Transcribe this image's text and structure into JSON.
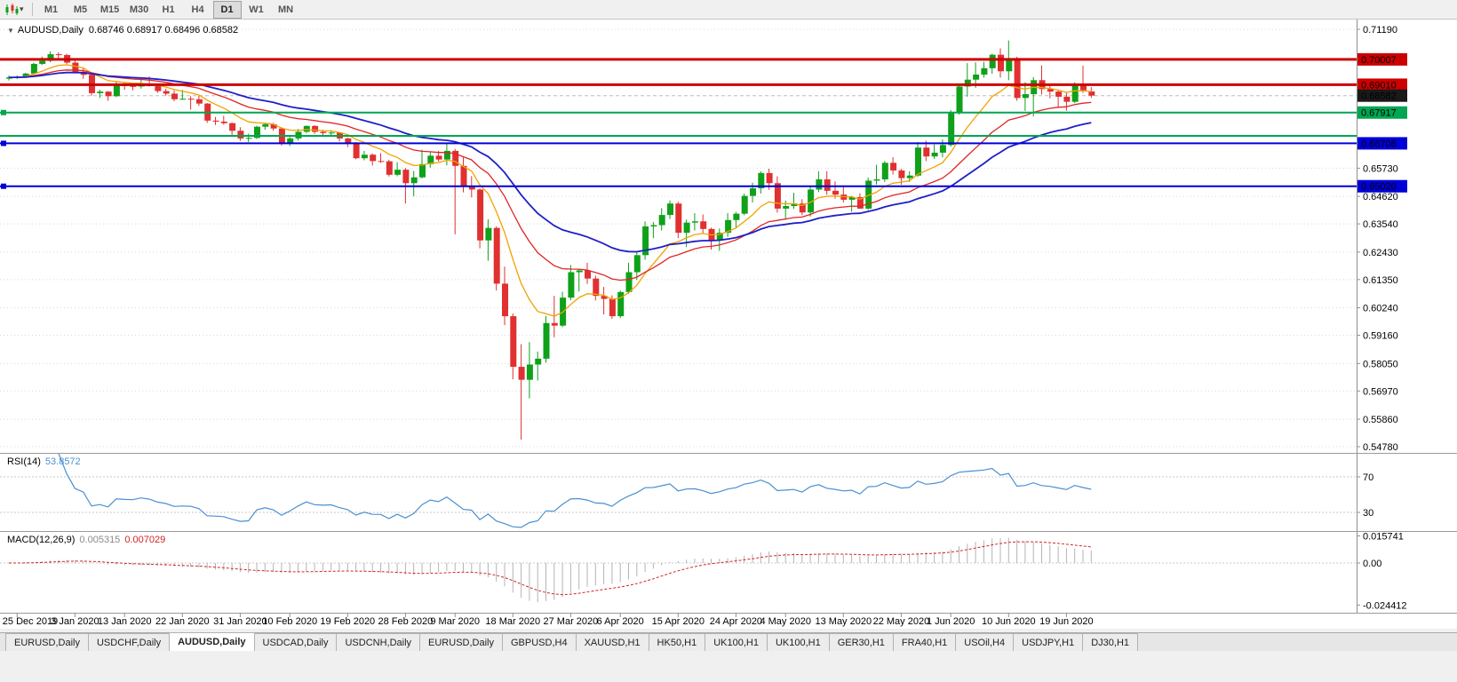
{
  "toolbar": {
    "timeframes": [
      "M1",
      "M5",
      "M15",
      "M30",
      "H1",
      "H4",
      "D1",
      "W1",
      "MN"
    ],
    "active_timeframe": "D1"
  },
  "chart": {
    "title": "AUDUSD,Daily",
    "ohlc": "0.68746 0.68917 0.68496 0.68582",
    "bid": "0.68582",
    "axis_labels": [
      "0.71190",
      "0.65730",
      "0.64620",
      "0.63540",
      "0.62430",
      "0.61350",
      "0.60240",
      "0.59160",
      "0.58050",
      "0.56970",
      "0.55860",
      "0.54780"
    ],
    "hlines": [
      {
        "price": 0.70007,
        "label": "0.70007",
        "color": "#cc0000",
        "width": 3,
        "handle": false
      },
      {
        "price": 0.6901,
        "label": "0.69010",
        "color": "#cc0000",
        "width": 3,
        "handle": false
      },
      {
        "price": 0.67917,
        "label": "0.67917",
        "color": "#00a651",
        "width": 2,
        "handle": true
      },
      {
        "price": 0.67,
        "label": "",
        "color": "#00a651",
        "width": 2,
        "handle": false
      },
      {
        "price": 0.66706,
        "label": "0.66706",
        "color": "#0000d8",
        "width": 2,
        "handle": true
      },
      {
        "price": 0.6502,
        "label": "0.65020",
        "color": "#0000d8",
        "width": 2,
        "handle": true
      }
    ],
    "colors": {
      "bull": "#0ea119",
      "bear": "#e03030",
      "grid": "#d8d8d8",
      "bid_tag": "#1a1a1a"
    }
  },
  "chart_data": {
    "type": "candlestick",
    "symbol": "AUDUSD",
    "period": "Daily",
    "x_labels": [
      {
        "i": 1,
        "label": "25 Dec 2019"
      },
      {
        "i": 8,
        "label": "3 Jan 2020"
      },
      {
        "i": 14,
        "label": "13 Jan 2020"
      },
      {
        "i": 21,
        "label": "22 Jan 2020"
      },
      {
        "i": 28,
        "label": "31 Jan 2020"
      },
      {
        "i": 34,
        "label": "10 Feb 2020"
      },
      {
        "i": 41,
        "label": "19 Feb 2020"
      },
      {
        "i": 48,
        "label": "28 Feb 2020"
      },
      {
        "i": 54,
        "label": "9 Mar 2020"
      },
      {
        "i": 61,
        "label": "18 Mar 2020"
      },
      {
        "i": 68,
        "label": "27 Mar 2020"
      },
      {
        "i": 74,
        "label": "6 Apr 2020"
      },
      {
        "i": 81,
        "label": "15 Apr 2020"
      },
      {
        "i": 88,
        "label": "24 Apr 2020"
      },
      {
        "i": 94,
        "label": "4 May 2020"
      },
      {
        "i": 101,
        "label": "13 May 2020"
      },
      {
        "i": 108,
        "label": "22 May 2020"
      },
      {
        "i": 114,
        "label": "1 Jun 2020"
      },
      {
        "i": 121,
        "label": "10 Jun 2020"
      },
      {
        "i": 128,
        "label": "19 Jun 2020"
      }
    ],
    "candles_ohlc": [
      [
        0.6925,
        0.6937,
        0.6918,
        0.693
      ],
      [
        0.693,
        0.6938,
        0.6924,
        0.6933
      ],
      [
        0.6933,
        0.6948,
        0.6928,
        0.6945
      ],
      [
        0.6945,
        0.6988,
        0.6941,
        0.6983
      ],
      [
        0.6983,
        0.7012,
        0.6978,
        0.6995
      ],
      [
        0.6995,
        0.7032,
        0.699,
        0.7021
      ],
      [
        0.7021,
        0.7029,
        0.7006,
        0.7018
      ],
      [
        0.7018,
        0.7023,
        0.6982,
        0.6988
      ],
      [
        0.6988,
        0.7,
        0.6948,
        0.6952
      ],
      [
        0.6952,
        0.6966,
        0.6924,
        0.694
      ],
      [
        0.694,
        0.6945,
        0.6858,
        0.6868
      ],
      [
        0.6868,
        0.6882,
        0.6849,
        0.6874
      ],
      [
        0.6874,
        0.6876,
        0.6838,
        0.6856
      ],
      [
        0.6856,
        0.6912,
        0.6852,
        0.69
      ],
      [
        0.69,
        0.6911,
        0.6881,
        0.6896
      ],
      [
        0.6896,
        0.6906,
        0.6879,
        0.6894
      ],
      [
        0.6894,
        0.6926,
        0.6886,
        0.6904
      ],
      [
        0.6904,
        0.6934,
        0.6894,
        0.6896
      ],
      [
        0.6896,
        0.6906,
        0.6869,
        0.6876
      ],
      [
        0.6876,
        0.6886,
        0.6858,
        0.6866
      ],
      [
        0.6866,
        0.6879,
        0.6836,
        0.6844
      ],
      [
        0.6844,
        0.6881,
        0.6841,
        0.6846
      ],
      [
        0.6846,
        0.6856,
        0.6803,
        0.6844
      ],
      [
        0.6844,
        0.6858,
        0.6818,
        0.6827
      ],
      [
        0.6827,
        0.6829,
        0.6751,
        0.676
      ],
      [
        0.676,
        0.6774,
        0.6743,
        0.6756
      ],
      [
        0.6756,
        0.6779,
        0.6744,
        0.675
      ],
      [
        0.675,
        0.6753,
        0.6698,
        0.672
      ],
      [
        0.672,
        0.6734,
        0.668,
        0.669
      ],
      [
        0.669,
        0.6709,
        0.6676,
        0.6692
      ],
      [
        0.6692,
        0.674,
        0.6688,
        0.6736
      ],
      [
        0.6736,
        0.6752,
        0.6724,
        0.6746
      ],
      [
        0.6746,
        0.6751,
        0.672,
        0.6729
      ],
      [
        0.6729,
        0.6734,
        0.6662,
        0.667
      ],
      [
        0.667,
        0.6696,
        0.666,
        0.669
      ],
      [
        0.669,
        0.6727,
        0.6682,
        0.6716
      ],
      [
        0.6716,
        0.6741,
        0.6711,
        0.6739
      ],
      [
        0.6739,
        0.6742,
        0.6708,
        0.6716
      ],
      [
        0.6716,
        0.6724,
        0.6699,
        0.6711
      ],
      [
        0.6711,
        0.6723,
        0.6699,
        0.6713
      ],
      [
        0.6713,
        0.6716,
        0.6678,
        0.669
      ],
      [
        0.669,
        0.6693,
        0.6656,
        0.6672
      ],
      [
        0.6672,
        0.6676,
        0.6608,
        0.6612
      ],
      [
        0.6612,
        0.6641,
        0.6604,
        0.6626
      ],
      [
        0.6626,
        0.6631,
        0.6583,
        0.6601
      ],
      [
        0.6601,
        0.6632,
        0.6594,
        0.66
      ],
      [
        0.66,
        0.6606,
        0.654,
        0.6547
      ],
      [
        0.6547,
        0.6596,
        0.6541,
        0.6567
      ],
      [
        0.6567,
        0.6574,
        0.6434,
        0.6514
      ],
      [
        0.6514,
        0.6562,
        0.6462,
        0.6537
      ],
      [
        0.6537,
        0.6646,
        0.6532,
        0.6589
      ],
      [
        0.6589,
        0.6637,
        0.6575,
        0.6622
      ],
      [
        0.6622,
        0.6641,
        0.6599,
        0.6607
      ],
      [
        0.6607,
        0.6672,
        0.6584,
        0.6641
      ],
      [
        0.6641,
        0.6649,
        0.6313,
        0.6582
      ],
      [
        0.6582,
        0.6616,
        0.6478,
        0.6501
      ],
      [
        0.6501,
        0.6542,
        0.6458,
        0.6489
      ],
      [
        0.6489,
        0.6494,
        0.6258,
        0.6289
      ],
      [
        0.6289,
        0.6372,
        0.6209,
        0.6338
      ],
      [
        0.6338,
        0.6344,
        0.6092,
        0.6119
      ],
      [
        0.6119,
        0.6186,
        0.5956,
        0.5991
      ],
      [
        0.5991,
        0.6002,
        0.5743,
        0.5792
      ],
      [
        0.5792,
        0.5881,
        0.5506,
        0.5741
      ],
      [
        0.5741,
        0.5889,
        0.5668,
        0.5801
      ],
      [
        0.5801,
        0.5852,
        0.5738,
        0.5824
      ],
      [
        0.5824,
        0.5992,
        0.5808,
        0.5964
      ],
      [
        0.5964,
        0.6071,
        0.5908,
        0.5954
      ],
      [
        0.5954,
        0.6087,
        0.5948,
        0.6064
      ],
      [
        0.6064,
        0.6192,
        0.6054,
        0.6164
      ],
      [
        0.6164,
        0.6176,
        0.6088,
        0.6171
      ],
      [
        0.6171,
        0.6201,
        0.6118,
        0.6139
      ],
      [
        0.6139,
        0.6151,
        0.6053,
        0.6071
      ],
      [
        0.6071,
        0.6106,
        0.5998,
        0.6059
      ],
      [
        0.6059,
        0.6073,
        0.598,
        0.5991
      ],
      [
        0.5991,
        0.6092,
        0.5983,
        0.6086
      ],
      [
        0.6086,
        0.6201,
        0.6078,
        0.6164
      ],
      [
        0.6164,
        0.6246,
        0.6133,
        0.6231
      ],
      [
        0.6231,
        0.6364,
        0.6213,
        0.6344
      ],
      [
        0.6344,
        0.6361,
        0.6298,
        0.6349
      ],
      [
        0.6349,
        0.6416,
        0.6328,
        0.6389
      ],
      [
        0.6389,
        0.6446,
        0.6373,
        0.6434
      ],
      [
        0.6434,
        0.6441,
        0.6298,
        0.6319
      ],
      [
        0.6319,
        0.6371,
        0.6263,
        0.6359
      ],
      [
        0.6359,
        0.6396,
        0.6328,
        0.6364
      ],
      [
        0.6364,
        0.6391,
        0.6318,
        0.6334
      ],
      [
        0.6334,
        0.6339,
        0.6253,
        0.6289
      ],
      [
        0.6289,
        0.6336,
        0.6248,
        0.6319
      ],
      [
        0.6319,
        0.6396,
        0.6303,
        0.6369
      ],
      [
        0.6369,
        0.6401,
        0.6338,
        0.6394
      ],
      [
        0.6394,
        0.6473,
        0.6388,
        0.6464
      ],
      [
        0.6464,
        0.6516,
        0.6438,
        0.6494
      ],
      [
        0.6494,
        0.6561,
        0.6473,
        0.6554
      ],
      [
        0.6554,
        0.6571,
        0.6488,
        0.6514
      ],
      [
        0.6514,
        0.6541,
        0.6398,
        0.6414
      ],
      [
        0.6414,
        0.6446,
        0.637,
        0.6424
      ],
      [
        0.6424,
        0.6476,
        0.6413,
        0.6434
      ],
      [
        0.6434,
        0.6451,
        0.6388,
        0.6399
      ],
      [
        0.6399,
        0.6501,
        0.6383,
        0.6489
      ],
      [
        0.6489,
        0.6561,
        0.6479,
        0.6529
      ],
      [
        0.6529,
        0.6561,
        0.6468,
        0.6484
      ],
      [
        0.6484,
        0.6521,
        0.6453,
        0.6469
      ],
      [
        0.6469,
        0.6506,
        0.6438,
        0.6449
      ],
      [
        0.6449,
        0.6464,
        0.6402,
        0.6459
      ],
      [
        0.6459,
        0.6474,
        0.6413,
        0.6414
      ],
      [
        0.6414,
        0.6536,
        0.6409,
        0.6524
      ],
      [
        0.6524,
        0.6586,
        0.6509,
        0.6529
      ],
      [
        0.6529,
        0.6601,
        0.6519,
        0.6594
      ],
      [
        0.6594,
        0.6616,
        0.6548,
        0.6564
      ],
      [
        0.6564,
        0.6571,
        0.6508,
        0.6534
      ],
      [
        0.6534,
        0.6561,
        0.6519,
        0.6544
      ],
      [
        0.6544,
        0.6676,
        0.6539,
        0.6654
      ],
      [
        0.6654,
        0.6681,
        0.6601,
        0.6619
      ],
      [
        0.6619,
        0.6666,
        0.6609,
        0.6634
      ],
      [
        0.6634,
        0.6686,
        0.6616,
        0.6664
      ],
      [
        0.6664,
        0.6801,
        0.6658,
        0.6794
      ],
      [
        0.6794,
        0.6901,
        0.6784,
        0.6894
      ],
      [
        0.6894,
        0.6986,
        0.6854,
        0.6921
      ],
      [
        0.6921,
        0.6989,
        0.6889,
        0.6941
      ],
      [
        0.6941,
        0.6991,
        0.6929,
        0.6966
      ],
      [
        0.6966,
        0.7023,
        0.6944,
        0.7019
      ],
      [
        0.7019,
        0.7044,
        0.6929,
        0.6954
      ],
      [
        0.6954,
        0.7075,
        0.6919,
        0.6999
      ],
      [
        0.6999,
        0.7011,
        0.6838,
        0.6849
      ],
      [
        0.6849,
        0.6911,
        0.6798,
        0.6864
      ],
      [
        0.6864,
        0.6931,
        0.6776,
        0.6919
      ],
      [
        0.6919,
        0.6977,
        0.6863,
        0.6884
      ],
      [
        0.6884,
        0.6906,
        0.6848,
        0.6874
      ],
      [
        0.6874,
        0.6881,
        0.6813,
        0.6854
      ],
      [
        0.6854,
        0.6871,
        0.6799,
        0.6834
      ],
      [
        0.6834,
        0.6911,
        0.6829,
        0.6904
      ],
      [
        0.6904,
        0.6976,
        0.6869,
        0.6879
      ],
      [
        0.68746,
        0.68917,
        0.68496,
        0.68582
      ]
    ],
    "overlays": [
      {
        "name": "ma-fast-line",
        "method": "ema",
        "period": 9,
        "color": "#f2a200",
        "width": 1.3
      },
      {
        "name": "ma-mid-line",
        "method": "ema",
        "period": 20,
        "color": "#e02525",
        "width": 1.3
      },
      {
        "name": "ma-slow-line",
        "method": "ema",
        "period": 34,
        "color": "#1f1fc8",
        "width": 1.8
      }
    ]
  },
  "rsi": {
    "name": "RSI(14)",
    "value": "53.8572",
    "period": 14,
    "levels": [
      70,
      30
    ],
    "axis_labels": [
      "70",
      "30"
    ],
    "color": "#4a90d2"
  },
  "macd": {
    "name": "MACD(12,26,9)",
    "fast": 12,
    "slow": 26,
    "signal_period": 9,
    "value_main": "0.005315",
    "value_signal": "0.007029",
    "axis_labels": [
      "0.015741",
      "0.00",
      "-0.024412"
    ],
    "histogram_color": "#b4b4b4",
    "signal_color": "#d22525"
  },
  "tabs": {
    "items": [
      "EURUSD,Daily",
      "USDCHF,Daily",
      "AUDUSD,Daily",
      "USDCAD,Daily",
      "USDCNH,Daily",
      "EURUSD,Daily",
      "GBPUSD,H4",
      "XAUUSD,H1",
      "HK50,H1",
      "UK100,H1",
      "UK100,H1",
      "GER30,H1",
      "FRA40,H1",
      "USOil,H4",
      "USDJPY,H1",
      "DJ30,H1"
    ],
    "active_index": 2
  }
}
